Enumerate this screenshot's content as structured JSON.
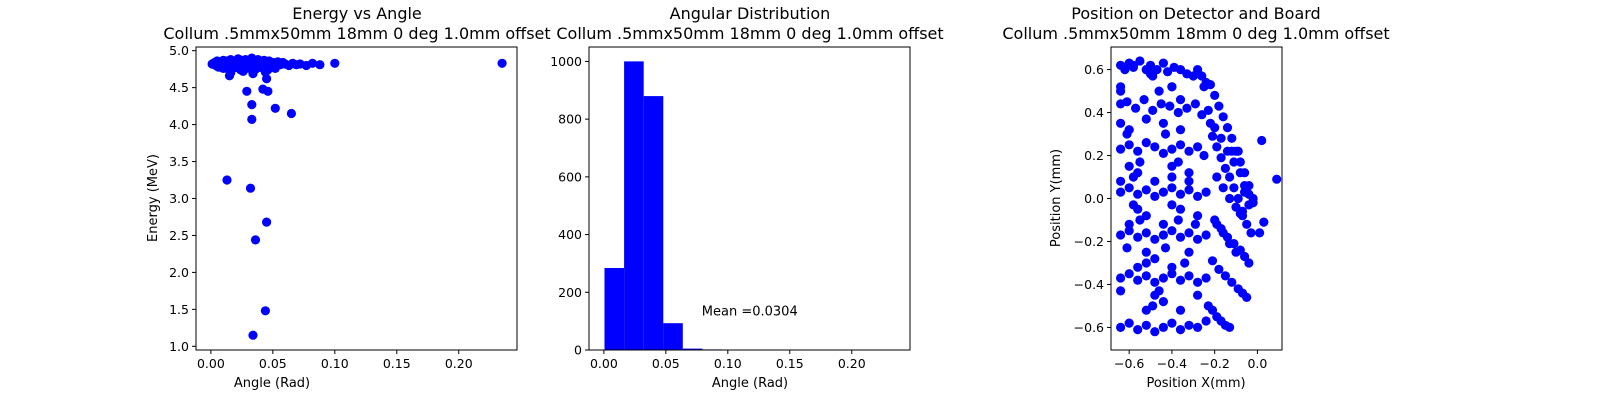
{
  "colors": {
    "marker": "#0000ff",
    "axis": "#000000",
    "background": "#ffffff"
  },
  "chart_data": [
    {
      "type": "scatter",
      "title": "Energy vs Angle",
      "subtitle": "Collum .5mmx50mm 18mm 0 deg 1.0mm offset",
      "xlabel": "Angle (Rad)",
      "ylabel": "Energy (MeV)",
      "xlim": [
        -0.012,
        0.247
      ],
      "ylim": [
        0.95,
        5.05
      ],
      "xticks": [
        0.0,
        0.05,
        0.1,
        0.15,
        0.2
      ],
      "xtick_labels": [
        "0.00",
        "0.05",
        "0.10",
        "0.15",
        "0.20"
      ],
      "yticks": [
        1.0,
        1.5,
        2.0,
        2.5,
        3.0,
        3.5,
        4.0,
        4.5,
        5.0
      ],
      "ytick_labels": [
        "1.0",
        "1.5",
        "2.0",
        "2.5",
        "3.0",
        "3.5",
        "4.0",
        "4.5",
        "5.0"
      ],
      "grid": false,
      "x": [
        0.001,
        0.003,
        0.004,
        0.005,
        0.006,
        0.007,
        0.008,
        0.009,
        0.01,
        0.011,
        0.012,
        0.013,
        0.014,
        0.015,
        0.016,
        0.017,
        0.018,
        0.019,
        0.02,
        0.021,
        0.022,
        0.023,
        0.024,
        0.025,
        0.026,
        0.027,
        0.028,
        0.029,
        0.03,
        0.031,
        0.032,
        0.033,
        0.034,
        0.035,
        0.036,
        0.037,
        0.038,
        0.039,
        0.04,
        0.041,
        0.042,
        0.043,
        0.044,
        0.045,
        0.046,
        0.047,
        0.048,
        0.05,
        0.052,
        0.054,
        0.056,
        0.058,
        0.06,
        0.063,
        0.066,
        0.069,
        0.072,
        0.077,
        0.082,
        0.088,
        0.1,
        0.235,
        0.01,
        0.014,
        0.019,
        0.024,
        0.029,
        0.036,
        0.041,
        0.046,
        0.052,
        0.006,
        0.016,
        0.026,
        0.034,
        0.044,
        0.045,
        0.015,
        0.029,
        0.042,
        0.046,
        0.033,
        0.052,
        0.033,
        0.065,
        0.013,
        0.032,
        0.045,
        0.036,
        0.044,
        0.034
      ],
      "y": [
        4.82,
        4.84,
        4.8,
        4.86,
        4.83,
        4.78,
        4.85,
        4.82,
        4.87,
        4.8,
        4.84,
        4.86,
        4.79,
        4.83,
        4.88,
        4.82,
        4.85,
        4.8,
        4.86,
        4.83,
        4.89,
        4.81,
        4.85,
        4.87,
        4.8,
        4.84,
        4.88,
        4.82,
        4.86,
        4.79,
        4.85,
        4.9,
        4.83,
        4.87,
        4.81,
        4.85,
        4.88,
        4.82,
        4.86,
        4.8,
        4.84,
        4.87,
        4.81,
        4.85,
        4.83,
        4.86,
        4.8,
        4.84,
        4.82,
        4.85,
        4.81,
        4.84,
        4.82,
        4.8,
        4.83,
        4.81,
        4.82,
        4.8,
        4.83,
        4.81,
        4.83,
        4.83,
        4.76,
        4.75,
        4.77,
        4.74,
        4.76,
        4.75,
        4.77,
        4.74,
        4.76,
        4.78,
        4.7,
        4.72,
        4.69,
        4.71,
        4.62,
        4.66,
        4.45,
        4.48,
        4.45,
        4.27,
        4.22,
        4.07,
        4.15,
        3.25,
        3.14,
        2.68,
        2.44,
        1.48,
        1.15
      ]
    },
    {
      "type": "bar",
      "title": "Angular Distribution",
      "subtitle": "Collum .5mmx50mm 18mm 0 deg 1.0mm offset",
      "xlabel": "Angle (Rad)",
      "ylabel": "",
      "xlim": [
        -0.012,
        0.247
      ],
      "ylim": [
        0,
        1050
      ],
      "xticks": [
        0.0,
        0.05,
        0.1,
        0.15,
        0.2
      ],
      "xtick_labels": [
        "0.00",
        "0.05",
        "0.10",
        "0.15",
        "0.20"
      ],
      "yticks": [
        0,
        200,
        400,
        600,
        800,
        1000
      ],
      "ytick_labels": [
        "0",
        "200",
        "400",
        "600",
        "800",
        "1000"
      ],
      "grid": false,
      "bin_edges": [
        0.0005,
        0.0163,
        0.0321,
        0.0479,
        0.0637,
        0.0795,
        0.0953,
        0.1111,
        0.1269,
        0.1427,
        0.1585,
        0.1743,
        0.1901,
        0.2059,
        0.2217,
        0.2375
      ],
      "values": [
        284,
        1000,
        880,
        93,
        5,
        2,
        1,
        0,
        0,
        0,
        0,
        0,
        0,
        0,
        1
      ],
      "annotation": {
        "text": "Mean =0.0304",
        "x": 0.079,
        "y": 120
      }
    },
    {
      "type": "scatter",
      "title": "Position on Detector and Board",
      "subtitle": "Collum .5mmx50mm 18mm 0 deg 1.0mm offset",
      "xlabel": "Position X(mm)",
      "ylabel": "Position Y(mm)",
      "xlim": [
        -0.685,
        0.115
      ],
      "ylim": [
        -0.705,
        0.705
      ],
      "xticks": [
        -0.6,
        -0.4,
        -0.2,
        0.0
      ],
      "xtick_labels": [
        "−0.6",
        "−0.4",
        "−0.2",
        "0.0"
      ],
      "yticks": [
        -0.6,
        -0.4,
        -0.2,
        0.0,
        0.2,
        0.4,
        0.6
      ],
      "ytick_labels": [
        "−0.6",
        "−0.4",
        "−0.2",
        "0.0",
        "0.2",
        "0.4",
        "0.6"
      ],
      "grid": false,
      "x": [
        -0.64,
        -0.62,
        -0.6,
        -0.58,
        -0.55,
        -0.52,
        -0.5,
        -0.47,
        -0.44,
        -0.42,
        -0.39,
        -0.36,
        -0.33,
        -0.3,
        -0.28,
        -0.26,
        -0.24,
        -0.22,
        -0.64,
        -0.61,
        -0.57,
        -0.53,
        -0.49,
        -0.45,
        -0.41,
        -0.37,
        -0.33,
        -0.29,
        -0.26,
        -0.23,
        -0.64,
        -0.6,
        -0.56,
        -0.52,
        -0.48,
        -0.44,
        -0.4,
        -0.36,
        -0.32,
        -0.28,
        -0.25,
        -0.64,
        -0.6,
        -0.56,
        -0.52,
        -0.48,
        -0.44,
        -0.4,
        -0.36,
        -0.32,
        -0.28,
        -0.24,
        -0.64,
        -0.6,
        -0.56,
        -0.52,
        -0.48,
        -0.44,
        -0.4,
        -0.36,
        -0.32,
        -0.28,
        -0.24,
        -0.64,
        -0.6,
        -0.56,
        -0.52,
        -0.48,
        -0.44,
        -0.4,
        -0.36,
        -0.32,
        -0.28,
        -0.24,
        -0.64,
        -0.6,
        -0.56,
        -0.52,
        -0.48,
        -0.44,
        -0.4,
        -0.36,
        -0.32,
        -0.28,
        -0.24,
        -0.64,
        -0.6,
        -0.56,
        -0.52,
        -0.48,
        -0.44,
        -0.4,
        -0.36,
        -0.32,
        -0.28,
        -0.64,
        -0.6,
        -0.56,
        -0.52,
        -0.48,
        -0.44,
        -0.4,
        -0.36,
        -0.32,
        -0.28,
        -0.64,
        -0.6,
        -0.56,
        -0.52,
        -0.48,
        -0.44,
        -0.4,
        -0.36,
        -0.32,
        -0.29,
        -0.64,
        -0.61,
        -0.58,
        -0.55,
        -0.52,
        -0.49,
        -0.46,
        -0.43,
        -0.4,
        -0.37,
        -0.34,
        -0.64,
        -0.61,
        -0.58,
        -0.55,
        -0.52,
        -0.49,
        -0.46,
        -0.43,
        -0.4,
        -0.37,
        -0.2,
        -0.18,
        -0.16,
        -0.14,
        -0.12,
        -0.1,
        -0.08,
        -0.06,
        -0.04,
        -0.2,
        -0.17,
        -0.14,
        -0.11,
        -0.08,
        -0.06,
        -0.04,
        -0.02,
        -0.19,
        -0.16,
        -0.13,
        -0.1,
        -0.07,
        -0.05,
        -0.03,
        -0.2,
        -0.17,
        -0.14,
        -0.11,
        -0.08,
        -0.06,
        -0.04,
        -0.21,
        -0.18,
        -0.15,
        -0.12,
        -0.09,
        -0.07,
        -0.05,
        -0.19,
        -0.16,
        -0.13,
        -0.1,
        -0.08,
        -0.06,
        -0.04,
        -0.02,
        -0.23,
        -0.21,
        -0.19,
        -0.17,
        -0.15,
        -0.13,
        -0.21,
        -0.19,
        -0.17,
        -0.15,
        -0.13,
        -0.11,
        -0.09,
        -0.07,
        0.02,
        0.09,
        0.01,
        0.03,
        -0.12,
        -0.09,
        -0.22,
        -0.25,
        -0.5,
        -0.52,
        -0.58,
        -0.4,
        -0.36
      ],
      "y": [
        0.62,
        0.6,
        0.63,
        0.61,
        0.64,
        0.6,
        0.62,
        0.6,
        0.63,
        0.59,
        0.61,
        0.6,
        0.58,
        0.57,
        0.6,
        0.57,
        0.54,
        0.53,
        0.44,
        0.45,
        0.42,
        0.46,
        0.41,
        0.44,
        0.43,
        0.4,
        0.42,
        0.44,
        0.39,
        0.41,
        0.23,
        0.25,
        0.22,
        0.26,
        0.24,
        0.21,
        0.23,
        0.25,
        0.22,
        0.24,
        0.2,
        0.03,
        0.05,
        0.02,
        0.04,
        0.01,
        0.03,
        0.05,
        0.02,
        0.04,
        0.01,
        0.03,
        -0.17,
        -0.15,
        -0.18,
        -0.16,
        -0.19,
        -0.17,
        -0.15,
        -0.18,
        -0.16,
        -0.19,
        -0.17,
        -0.37,
        -0.35,
        -0.38,
        -0.36,
        -0.39,
        -0.37,
        -0.35,
        -0.38,
        -0.36,
        -0.39,
        -0.37,
        -0.6,
        -0.58,
        -0.61,
        -0.59,
        -0.62,
        -0.6,
        -0.58,
        -0.61,
        -0.59,
        -0.6,
        -0.57,
        0.52,
        0.32,
        0.12,
        -0.08,
        -0.28,
        -0.48,
        0.52,
        0.32,
        0.12,
        -0.08,
        0.35,
        0.15,
        -0.05,
        -0.25,
        -0.45,
        0.35,
        0.15,
        -0.05,
        -0.25,
        -0.45,
        0.08,
        -0.12,
        -0.32,
        -0.52,
        0.08,
        -0.12,
        -0.32,
        -0.52,
        0.08,
        -0.12,
        0.5,
        0.3,
        0.1,
        -0.1,
        -0.3,
        -0.5,
        0.5,
        0.3,
        0.1,
        -0.1,
        -0.3,
        -0.43,
        -0.23,
        -0.03,
        0.17,
        0.37,
        0.57,
        -0.43,
        -0.23,
        -0.03,
        0.17,
        0.48,
        0.43,
        0.38,
        0.33,
        0.28,
        0.22,
        0.17,
        0.12,
        0.06,
        0.33,
        0.28,
        0.22,
        0.17,
        0.12,
        0.06,
        0.02,
        -0.02,
        0.1,
        0.05,
        0.0,
        -0.04,
        -0.08,
        -0.12,
        -0.16,
        -0.1,
        -0.14,
        -0.18,
        -0.21,
        -0.24,
        -0.27,
        -0.3,
        -0.29,
        -0.33,
        -0.36,
        -0.39,
        -0.42,
        -0.44,
        -0.46,
        -0.12,
        -0.16,
        -0.21,
        -0.25,
        -0.07,
        0.03,
        -0.03,
        0.0,
        -0.5,
        -0.52,
        -0.55,
        -0.57,
        -0.59,
        -0.6,
        0.29,
        0.24,
        0.19,
        0.14,
        0.1,
        0.05,
        0.0,
        -0.06,
        0.27,
        0.09,
        -0.16,
        -0.11,
        0.22,
        0.22,
        0.35,
        0.52,
        0.58,
        0.6,
        0.62,
        0.52,
        0.46
      ]
    }
  ]
}
